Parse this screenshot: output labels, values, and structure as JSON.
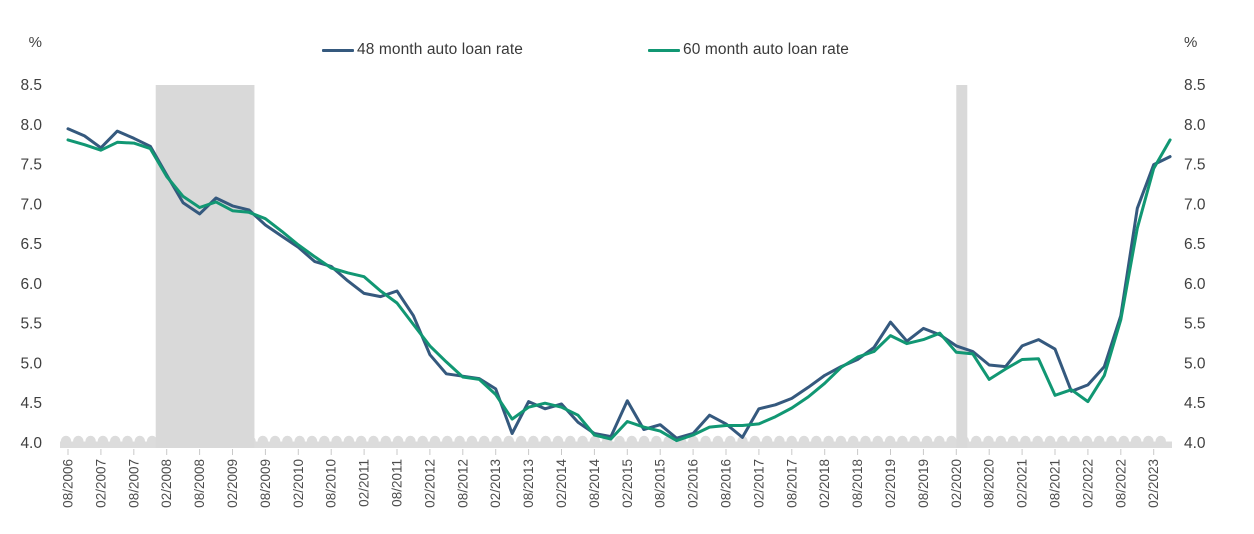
{
  "chart_data": {
    "type": "line",
    "title": "",
    "unit_label": "%",
    "ylim": [
      4.0,
      8.5
    ],
    "yticks": [
      4.0,
      4.5,
      5.0,
      5.5,
      6.0,
      6.5,
      7.0,
      7.5,
      8.0,
      8.5
    ],
    "grid": false,
    "legend_position": "top-center",
    "x_frequency": "quarterly",
    "x": [
      "08/2006",
      "11/2006",
      "02/2007",
      "05/2007",
      "08/2007",
      "11/2007",
      "02/2008",
      "05/2008",
      "08/2008",
      "11/2008",
      "02/2009",
      "05/2009",
      "08/2009",
      "11/2009",
      "02/2010",
      "05/2010",
      "08/2010",
      "11/2010",
      "02/2011",
      "05/2011",
      "08/2011",
      "11/2011",
      "02/2012",
      "05/2012",
      "08/2012",
      "11/2012",
      "02/2013",
      "05/2013",
      "08/2013",
      "11/2013",
      "02/2014",
      "05/2014",
      "08/2014",
      "11/2014",
      "02/2015",
      "05/2015",
      "08/2015",
      "11/2015",
      "02/2016",
      "05/2016",
      "08/2016",
      "11/2016",
      "02/2017",
      "05/2017",
      "08/2017",
      "11/2017",
      "02/2018",
      "05/2018",
      "08/2018",
      "11/2018",
      "02/2019",
      "05/2019",
      "08/2019",
      "11/2019",
      "02/2020",
      "05/2020",
      "08/2020",
      "11/2020",
      "02/2021",
      "05/2021",
      "08/2021",
      "11/2021",
      "02/2022",
      "05/2022",
      "08/2022",
      "11/2022",
      "02/2023",
      "05/2023"
    ],
    "x_tick_labels": [
      "08/2006",
      "02/2007",
      "08/2007",
      "02/2008",
      "08/2008",
      "02/2009",
      "08/2009",
      "02/2010",
      "08/2010",
      "02/2011",
      "08/2011",
      "02/2012",
      "08/2012",
      "02/2013",
      "08/2013",
      "02/2014",
      "08/2014",
      "02/2015",
      "08/2015",
      "02/2016",
      "08/2016",
      "02/2017",
      "08/2017",
      "02/2018",
      "08/2018",
      "02/2019",
      "08/2019",
      "02/2020",
      "08/2020",
      "02/2021",
      "08/2021",
      "02/2022",
      "08/2022",
      "02/2023"
    ],
    "series": [
      {
        "name": "48 month auto loan rate",
        "color": "#35597E",
        "values": [
          7.95,
          7.86,
          7.71,
          7.92,
          7.83,
          7.73,
          7.37,
          7.02,
          6.88,
          7.08,
          6.98,
          6.93,
          6.74,
          6.6,
          6.46,
          6.28,
          6.22,
          6.04,
          5.88,
          5.84,
          5.91,
          5.6,
          5.11,
          4.87,
          4.84,
          4.81,
          4.68,
          4.12,
          4.52,
          4.43,
          4.49,
          4.26,
          4.12,
          4.08,
          4.53,
          4.17,
          4.23,
          4.06,
          4.12,
          4.35,
          4.24,
          4.07,
          4.43,
          4.48,
          4.56,
          4.7,
          4.85,
          4.96,
          5.05,
          5.2,
          5.52,
          5.28,
          5.44,
          5.36,
          5.22,
          5.15,
          4.98,
          4.96,
          5.22,
          5.3,
          5.18,
          4.65,
          4.73,
          4.96,
          5.6,
          6.95,
          7.5,
          7.6
        ]
      },
      {
        "name": "60 month auto loan rate",
        "color": "#119773",
        "values": [
          7.81,
          7.75,
          7.68,
          7.78,
          7.77,
          7.7,
          7.35,
          7.1,
          6.96,
          7.03,
          6.92,
          6.9,
          6.82,
          6.66,
          6.49,
          6.34,
          6.2,
          6.14,
          6.09,
          5.91,
          5.76,
          5.49,
          5.22,
          5.02,
          4.83,
          4.8,
          4.61,
          4.3,
          4.45,
          4.5,
          4.45,
          4.35,
          4.1,
          4.05,
          4.27,
          4.2,
          4.15,
          4.03,
          4.1,
          4.2,
          4.22,
          4.22,
          4.24,
          4.33,
          4.44,
          4.58,
          4.75,
          4.95,
          5.08,
          5.15,
          5.35,
          5.25,
          5.3,
          5.38,
          5.14,
          5.12,
          4.8,
          4.93,
          5.05,
          5.06,
          4.6,
          4.67,
          4.52,
          4.85,
          5.55,
          6.7,
          7.45,
          7.81
        ]
      }
    ],
    "recession_bands": [
      {
        "start": "12/2007",
        "end": "06/2009"
      },
      {
        "start": "02/2020",
        "end": "04/2020"
      }
    ],
    "recession_band_color": "#D9D9D9",
    "baseline_band_color": "#DCDCDC",
    "baseline_style": "scalloped-dash-band"
  },
  "legend": {
    "series_1": "48 month auto loan rate",
    "series_2": "60 month auto loan rate"
  },
  "axis": {
    "left_unit": "%",
    "right_unit": "%"
  }
}
